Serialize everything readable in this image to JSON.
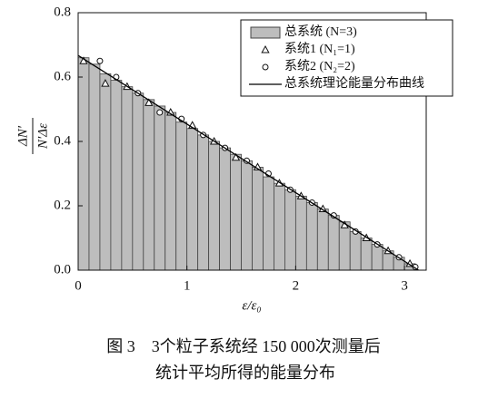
{
  "chart_data": {
    "type": "histogram",
    "name": "总系统 (N=3)",
    "color": "#bdbdbd",
    "bins": [
      0,
      0.1,
      0.2,
      0.3,
      0.4,
      0.5,
      0.6,
      0.7,
      0.8,
      0.9,
      1.0,
      1.1,
      1.2,
      1.3,
      1.4,
      1.5,
      1.6,
      1.7,
      1.8,
      1.9,
      2.0,
      2.1,
      2.2,
      2.3,
      2.4,
      2.5,
      2.6,
      2.7,
      2.8,
      2.9,
      3.0,
      3.1
    ],
    "values": [
      0.66,
      0.64,
      0.61,
      0.59,
      0.57,
      0.55,
      0.53,
      0.51,
      0.49,
      0.46,
      0.44,
      0.42,
      0.4,
      0.38,
      0.36,
      0.34,
      0.32,
      0.29,
      0.27,
      0.25,
      0.23,
      0.21,
      0.19,
      0.17,
      0.15,
      0.12,
      0.1,
      0.08,
      0.06,
      0.04,
      0.02
    ],
    "series": [
      {
        "type": "scatter",
        "marker": "triangle",
        "name": "系统1 (N₁=1)",
        "x": [
          0.05,
          0.25,
          0.45,
          0.65,
          0.85,
          1.05,
          1.25,
          1.45,
          1.65,
          1.85,
          2.05,
          2.25,
          2.45,
          2.65,
          2.85,
          3.05
        ],
        "values": [
          0.65,
          0.58,
          0.57,
          0.52,
          0.49,
          0.45,
          0.4,
          0.35,
          0.32,
          0.27,
          0.23,
          0.19,
          0.14,
          0.1,
          0.06,
          0.02
        ]
      },
      {
        "type": "scatter",
        "marker": "circle",
        "name": "系统2 (N₂=2)",
        "x": [
          0.2,
          0.35,
          0.55,
          0.75,
          0.95,
          1.15,
          1.35,
          1.55,
          1.75,
          1.95,
          2.15,
          2.35,
          2.55,
          2.75,
          2.95,
          3.1
        ],
        "values": [
          0.65,
          0.6,
          0.55,
          0.49,
          0.47,
          0.42,
          0.38,
          0.34,
          0.3,
          0.25,
          0.21,
          0.17,
          0.12,
          0.08,
          0.04,
          0.01
        ]
      },
      {
        "type": "line",
        "name": "总系统理论能量分布曲线",
        "color": "#000000",
        "x": [
          0,
          3.13
        ],
        "values": [
          0.667,
          0
        ]
      }
    ],
    "xlabel": "ε/ε₀",
    "ylabel_numerator": "ΔN′",
    "ylabel_denominator": "N′Δε",
    "xlim": [
      0,
      3.2
    ],
    "ylim": [
      0,
      0.8
    ],
    "xticks": [
      0,
      1,
      2,
      3
    ],
    "yticks": [
      {
        "value": 0,
        "label": "0.0"
      },
      0.2,
      0.4,
      0.6,
      0.8
    ],
    "legend": "upper right",
    "caption": [
      "图 3　3个粒子系统经 150 000次测量后",
      "统计平均所得的能量分布"
    ]
  }
}
